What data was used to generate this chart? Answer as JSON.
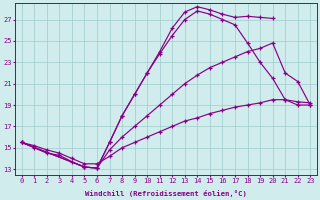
{
  "bg_color": "#d0ecec",
  "line_color": "#880088",
  "grid_color": "#a0cccc",
  "xlabel": "Windchill (Refroidissement éolien,°C)",
  "xlabel_color": "#880088",
  "tick_color": "#880088",
  "xlim": [
    -0.5,
    23.5
  ],
  "ylim": [
    12.5,
    28.5
  ],
  "yticks": [
    13,
    15,
    17,
    19,
    21,
    23,
    25,
    27
  ],
  "xticks": [
    0,
    1,
    2,
    3,
    4,
    5,
    6,
    7,
    8,
    9,
    10,
    11,
    12,
    13,
    14,
    15,
    16,
    17,
    18,
    19,
    20,
    21,
    22,
    23
  ],
  "curve1_x": [
    0,
    1,
    2,
    3,
    4,
    5,
    6,
    7,
    8,
    9,
    10,
    11,
    12,
    13,
    14,
    15,
    16,
    17,
    18,
    19,
    20
  ],
  "curve1_y": [
    15.5,
    15.0,
    14.5,
    14.3,
    13.7,
    13.2,
    13.1,
    15.5,
    18.0,
    20.0,
    22.0,
    24.0,
    26.2,
    27.7,
    28.2,
    27.9,
    27.5,
    27.2,
    27.3,
    27.2,
    27.1
  ],
  "curve2_x": [
    0,
    5,
    6,
    7,
    8,
    9,
    10,
    11,
    12,
    13,
    14,
    15,
    16,
    17,
    18,
    19,
    20,
    21,
    22,
    23
  ],
  "curve2_y": [
    15.5,
    13.2,
    13.1,
    15.5,
    18.0,
    20.0,
    22.0,
    23.8,
    25.5,
    27.0,
    27.8,
    27.5,
    27.0,
    26.5,
    24.8,
    23.0,
    21.5,
    19.5,
    19.0,
    19.0
  ],
  "curve3_x": [
    0,
    5,
    6,
    7,
    8,
    9,
    10,
    11,
    12,
    13,
    14,
    15,
    16,
    17,
    18,
    19,
    20,
    21,
    22,
    23
  ],
  "curve3_y": [
    15.5,
    13.2,
    13.1,
    14.8,
    16.0,
    17.0,
    18.0,
    19.0,
    20.0,
    21.0,
    21.8,
    22.5,
    23.0,
    23.5,
    24.0,
    24.3,
    24.8,
    22.0,
    21.2,
    19.0
  ],
  "curve4_x": [
    0,
    1,
    2,
    3,
    4,
    5,
    6,
    7,
    8,
    9,
    10,
    11,
    12,
    13,
    14,
    15,
    16,
    17,
    18,
    19,
    20,
    21,
    22,
    23
  ],
  "curve4_y": [
    15.5,
    15.2,
    14.8,
    14.5,
    14.0,
    13.5,
    13.5,
    14.2,
    15.0,
    15.5,
    16.0,
    16.5,
    17.0,
    17.5,
    17.8,
    18.2,
    18.5,
    18.8,
    19.0,
    19.2,
    19.5,
    19.5,
    19.3,
    19.2
  ]
}
